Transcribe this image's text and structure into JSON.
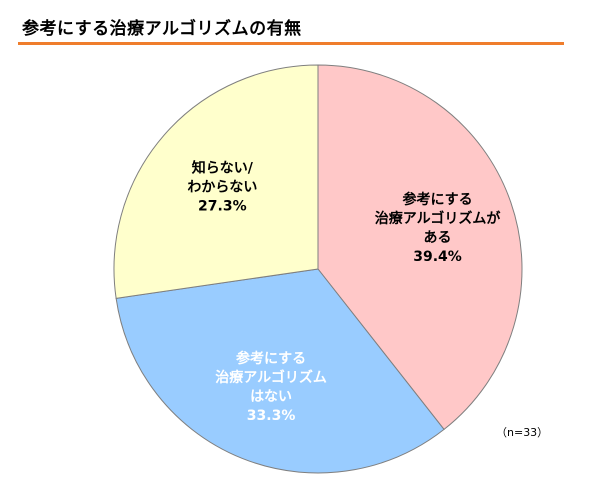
{
  "title": "参考にする治療アルゴリズムの有無",
  "note": "（n=33）",
  "chart_data": {
    "type": "pie",
    "title": "参考にする治療アルゴリズムの有無",
    "start": "12 o'clock, clockwise",
    "slices": [
      {
        "label_lines": [
          "参考にする",
          "治療アルゴリズムが",
          "ある"
        ],
        "value": 39.4,
        "value_label": "39.4%",
        "color": "#ffc8c8",
        "text_color": "#000000"
      },
      {
        "label_lines": [
          "参考にする",
          "治療アルゴリズム",
          "はない"
        ],
        "value": 33.3,
        "value_label": "33.3%",
        "color": "#99ccff",
        "text_color": "#ffffff"
      },
      {
        "label_lines": [
          "知らない/",
          "わからない"
        ],
        "value": 27.3,
        "value_label": "27.3%",
        "color": "#ffffcc",
        "text_color": "#000000"
      }
    ],
    "legend": "none"
  }
}
